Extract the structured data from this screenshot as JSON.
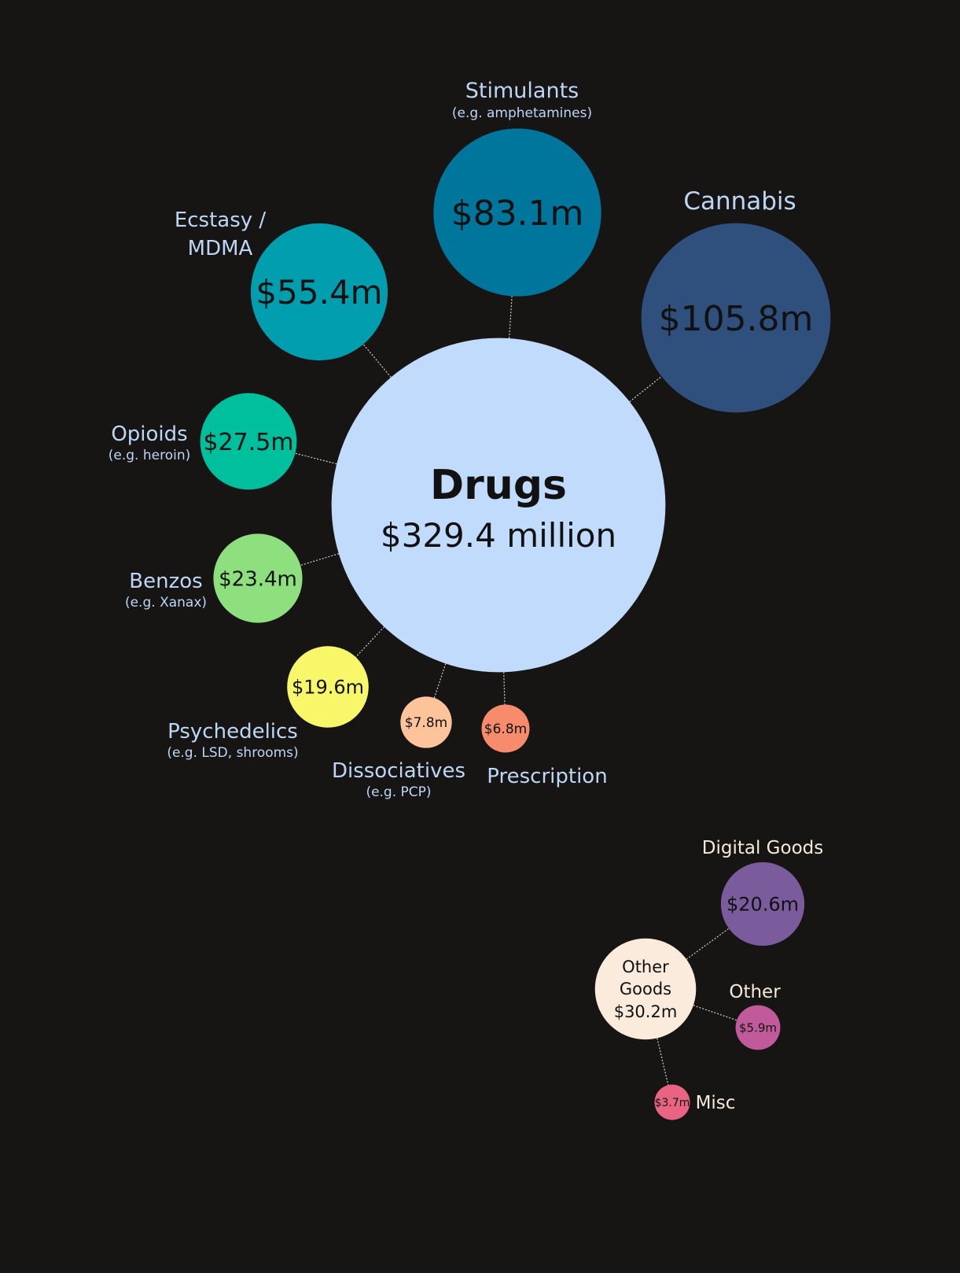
{
  "chart_data": {
    "type": "bubble",
    "unit": "$ million",
    "groups": [
      {
        "id": "drugs",
        "name": "Drugs",
        "value": 329.4,
        "value_label": "$329.4 million",
        "color": "#c0dbfb",
        "children": [
          {
            "id": "cannabis",
            "name": "Cannabis",
            "note": "",
            "value": 105.8,
            "value_label": "$105.8m",
            "color": "#2f4f7c"
          },
          {
            "id": "stimulants",
            "name": "Stimulants",
            "note": "(e.g. amphetamines)",
            "value": 83.1,
            "value_label": "$83.1m",
            "color": "#00769d"
          },
          {
            "id": "ecstasy",
            "name": "Ecstasy / MDMA",
            "note": "",
            "value": 55.4,
            "value_label": "$55.4m",
            "color": "#009eae"
          },
          {
            "id": "opioids",
            "name": "Opioids",
            "note": "(e.g. heroin)",
            "value": 27.5,
            "value_label": "$27.5m",
            "color": "#00bf9c"
          },
          {
            "id": "benzos",
            "name": "Benzos",
            "note": "(e.g. Xanax)",
            "value": 23.4,
            "value_label": "$23.4m",
            "color": "#8ee07f"
          },
          {
            "id": "psychedelics",
            "name": "Psychedelics",
            "note": "(e.g. LSD, shrooms)",
            "value": 19.6,
            "value_label": "$19.6m",
            "color": "#f8f76a"
          },
          {
            "id": "dissociatives",
            "name": "Dissociatives",
            "note": "(e.g. PCP)",
            "value": 7.8,
            "value_label": "$7.8m",
            "color": "#fdc39b"
          },
          {
            "id": "prescription",
            "name": "Prescription",
            "note": "",
            "value": 6.8,
            "value_label": "$6.8m",
            "color": "#f78c6c"
          }
        ]
      },
      {
        "id": "other_goods",
        "name": "Other Goods",
        "value": 30.2,
        "value_label": "$30.2m",
        "color": "#fbebdc",
        "children": [
          {
            "id": "digital",
            "name": "Digital Goods",
            "note": "",
            "value": 20.6,
            "value_label": "$20.6m",
            "color": "#7a5b9b"
          },
          {
            "id": "other",
            "name": "Other",
            "note": "",
            "value": 5.9,
            "value_label": "$5.9m",
            "color": "#c15a9a"
          },
          {
            "id": "misc",
            "name": "Misc",
            "note": "",
            "value": 3.7,
            "value_label": "$3.7m",
            "color": "#e96383"
          }
        ]
      }
    ]
  }
}
